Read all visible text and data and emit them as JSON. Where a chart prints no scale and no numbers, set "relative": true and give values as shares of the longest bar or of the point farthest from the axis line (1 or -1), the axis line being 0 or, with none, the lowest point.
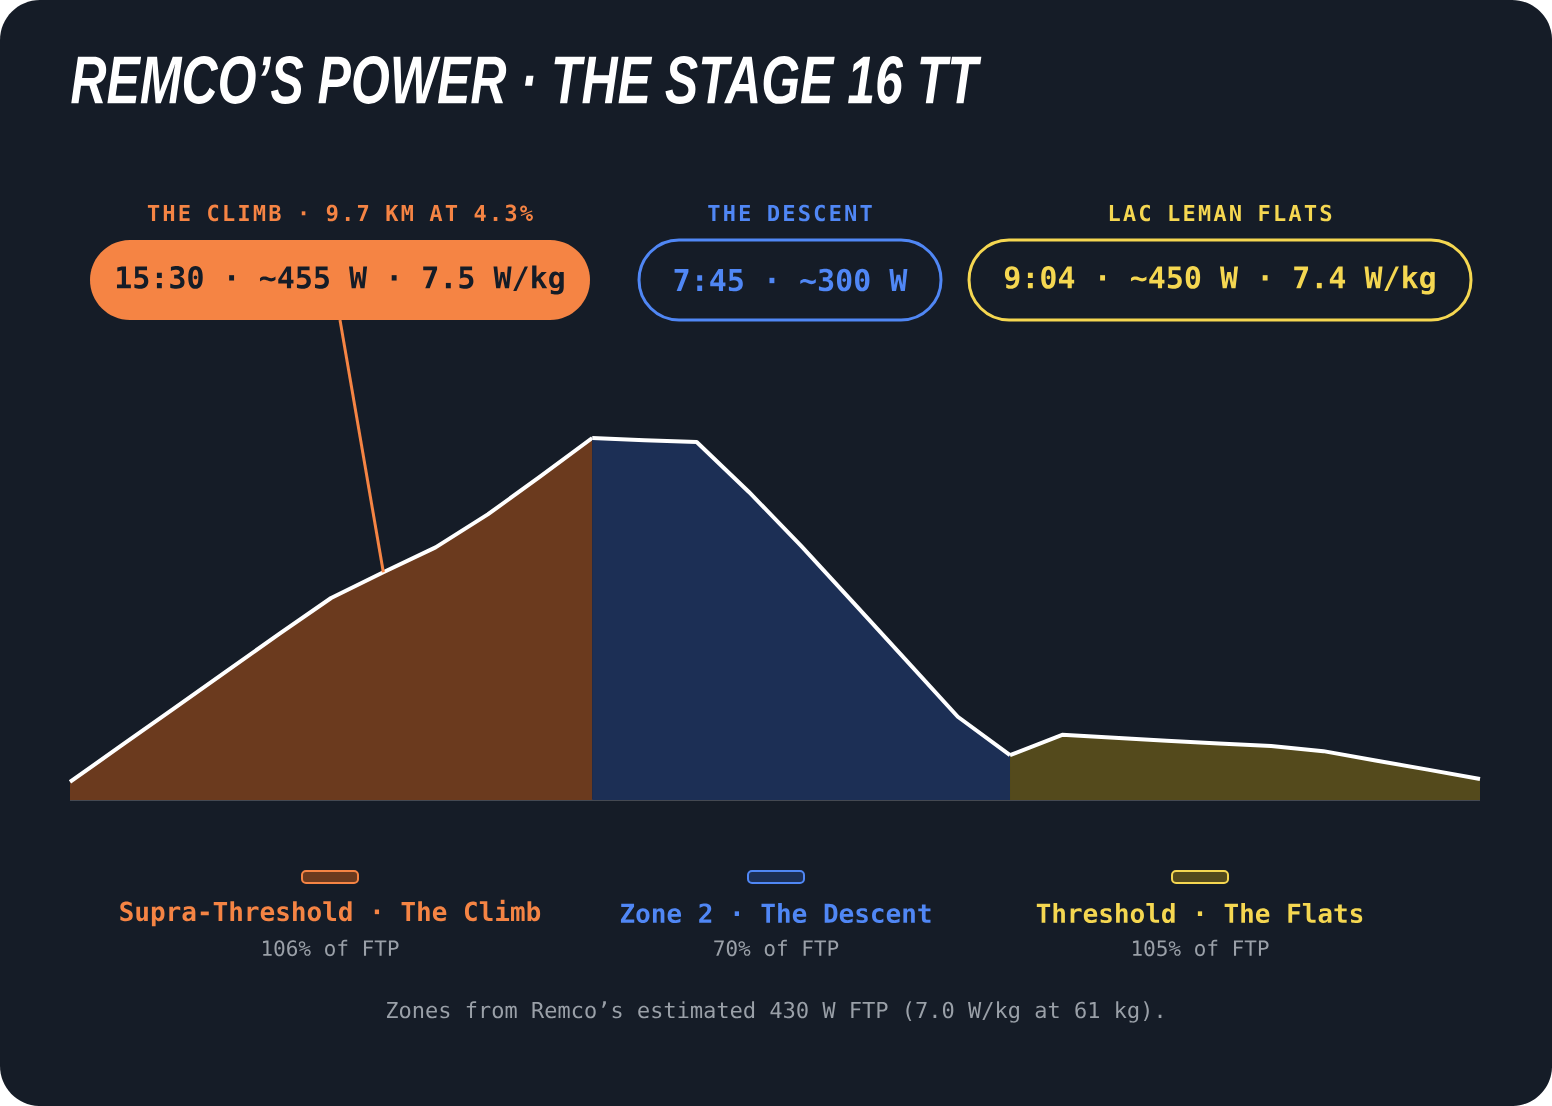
{
  "chart_data": {
    "type": "area",
    "title": "REMCO’S POWER · THE STAGE 16 TT",
    "relative": true,
    "legend": "bottom",
    "categories": [
      null,
      null,
      null,
      null,
      null,
      null,
      null,
      null,
      null,
      null,
      null,
      null,
      null,
      null,
      null,
      null,
      null,
      null,
      null,
      null,
      null,
      null,
      null,
      null,
      null,
      null,
      null,
      null
    ],
    "series": [
      {
        "name": "Supra-Threshold · The Climb",
        "color": "#6b3a1e",
        "values": [
          0.05,
          0.152,
          0.254,
          0.356,
          0.458,
          0.558,
          0.629,
          0.698,
          0.789,
          0.893,
          1.0,
          null,
          null,
          null,
          null,
          null,
          null,
          null,
          null,
          null,
          null,
          null,
          null,
          null,
          null,
          null,
          null,
          null
        ]
      },
      {
        "name": "Zone 2 · The Descent",
        "color": "#1c2f55",
        "values": [
          null,
          null,
          null,
          null,
          null,
          null,
          null,
          null,
          null,
          null,
          1.0,
          0.994,
          0.989,
          0.851,
          0.702,
          0.545,
          0.388,
          0.23,
          0.124,
          null,
          null,
          null,
          null,
          null,
          null,
          null,
          null,
          null
        ]
      },
      {
        "name": "Threshold · The Flats",
        "color": "#544a1c",
        "values": [
          null,
          null,
          null,
          null,
          null,
          null,
          null,
          null,
          null,
          null,
          null,
          null,
          null,
          null,
          null,
          null,
          null,
          null,
          0.124,
          0.18,
          0.172,
          0.164,
          0.156,
          0.149,
          0.135,
          0.109,
          0.084,
          0.058
        ]
      }
    ],
    "annotations": [
      "THE CLIMB · 9.7 KM AT 4.3%",
      "THE DESCENT",
      "LAC LEMAN FLATS",
      "15:30 · ~455 W · 7.5 W/kg",
      "7:45 · ~300 W",
      "9:04 · ~450 W · 7.4 W/kg",
      "106% of FTP",
      "70% of FTP",
      "105% of FTP",
      "Zones from Remco’s estimated 430 W FTP (7.0 W/kg at 61 kg)."
    ]
  }
}
